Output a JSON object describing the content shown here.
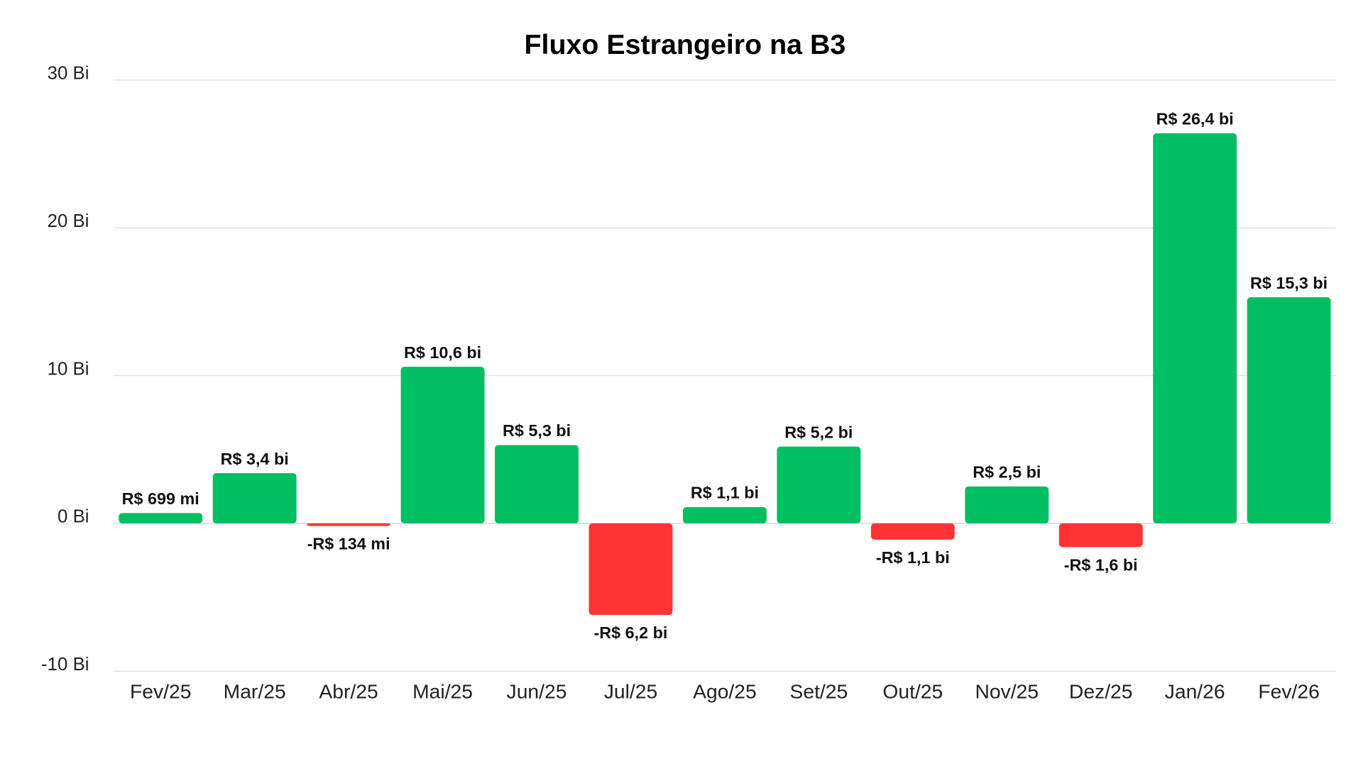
{
  "chart_data": {
    "type": "bar",
    "title": "Fluxo Estrangeiro na B3",
    "xlabel": "",
    "ylabel": "",
    "ylim": [
      -10,
      30
    ],
    "yticks": [
      {
        "value": 30,
        "label": "30 Bi"
      },
      {
        "value": 20,
        "label": "20 Bi"
      },
      {
        "value": 10,
        "label": "10 Bi"
      },
      {
        "value": 0,
        "label": "0 Bi"
      },
      {
        "value": -10,
        "label": "-10 Bi"
      }
    ],
    "grid": true,
    "categories": [
      "Fev/25",
      "Mar/25",
      "Abr/25",
      "Mai/25",
      "Jun/25",
      "Jul/25",
      "Ago/25",
      "Set/25",
      "Out/25",
      "Nov/25",
      "Dez/25",
      "Jan/26",
      "Fev/26"
    ],
    "values": [
      0.699,
      3.4,
      -0.134,
      10.6,
      5.3,
      -6.2,
      1.1,
      5.2,
      -1.1,
      2.5,
      -1.6,
      26.4,
      15.3
    ],
    "data_labels": [
      "R$ 699 mi",
      "R$ 3,4 bi",
      "-R$ 134 mi",
      "R$ 10,6 bi",
      "R$ 5,3 bi",
      "-R$ 6,2 bi",
      "R$ 1,1 bi",
      "R$ 5,2 bi",
      "-R$ 1,1 bi",
      "R$ 2,5 bi",
      "-R$ 1,6 bi",
      "R$ 26,4 bi",
      "R$ 15,3 bi"
    ],
    "colors": {
      "positive": "#00BE62",
      "negative": "#FF3333"
    }
  }
}
